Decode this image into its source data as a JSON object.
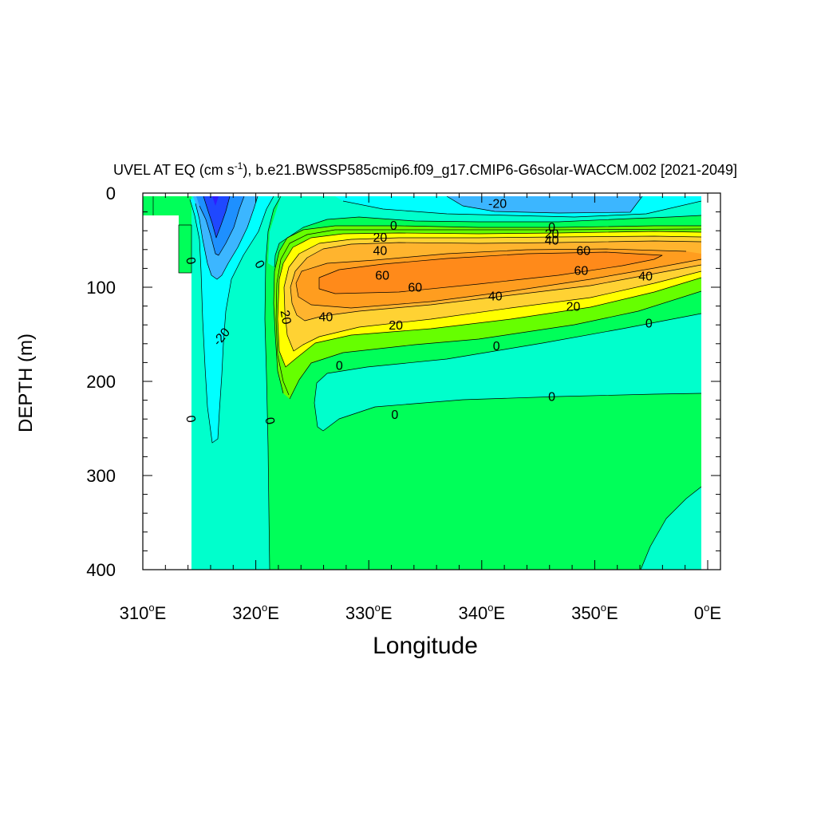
{
  "chart_data": {
    "type": "contour",
    "title": "UVEL AT EQ (cm s-1), b.e21.BWSSP585cmip6.f09_g17.CMIP6-G6solar-WACCM.002 [2021-2049]",
    "title_parts": {
      "pre": "UVEL AT EQ (cm s",
      "sup": "-1",
      "post": "), b.e21.BWSSP585cmip6.f09_g17.CMIP6-G6solar-WACCM.002 [2021-2049]"
    },
    "xlabel": "Longitude",
    "ylabel": "DEPTH (m)",
    "xlim": [
      310,
      360
    ],
    "ylim": [
      400,
      0
    ],
    "xticks": [
      {
        "value": 310,
        "num": "310",
        "deg": "o",
        "unit": "E"
      },
      {
        "value": 320,
        "num": "320",
        "deg": "o",
        "unit": "E"
      },
      {
        "value": 330,
        "num": "330",
        "deg": "o",
        "unit": "E"
      },
      {
        "value": 340,
        "num": "340",
        "deg": "o",
        "unit": "E"
      },
      {
        "value": 350,
        "num": "350",
        "deg": "o",
        "unit": "E"
      },
      {
        "value": 360,
        "num": "0",
        "deg": "o",
        "unit": "E"
      }
    ],
    "yticks": [
      {
        "value": 0,
        "label": "0"
      },
      {
        "value": 100,
        "label": "100"
      },
      {
        "value": 200,
        "label": "200"
      },
      {
        "value": 300,
        "label": "300"
      },
      {
        "value": 400,
        "label": "400"
      }
    ],
    "contour_levels": [
      -20,
      0,
      20,
      40,
      60
    ],
    "fill_colors": {
      "below_m40": "#1f48ff",
      "m40_m30": "#1e90ff",
      "m30_m20": "#3cb6ff",
      "m20_m10": "#00ffff",
      "m10_0": "#00ffcc",
      "0_10": "#00ff59",
      "10_20": "#66ff00",
      "20_30": "#ffff00",
      "30_40": "#ffd233",
      "40_50": "#ffb42e",
      "50_60": "#ff9d1f",
      "above_60": "#ff8a1a",
      "core": "#2e1eff",
      "land": "#ffffff"
    },
    "contour_labels": [
      {
        "text": "-20",
        "lon": 341.4,
        "depth": 12,
        "angle": 0
      },
      {
        "text": "0",
        "lon": 332.2,
        "depth": 35,
        "angle": 0
      },
      {
        "text": "0",
        "lon": 346.2,
        "depth": 37,
        "angle": 0
      },
      {
        "text": "20",
        "lon": 331.0,
        "depth": 48,
        "angle": 0
      },
      {
        "text": "20",
        "lon": 346.2,
        "depth": 44,
        "angle": 0
      },
      {
        "text": "40",
        "lon": 331.0,
        "depth": 62,
        "angle": 0
      },
      {
        "text": "40",
        "lon": 346.2,
        "depth": 51,
        "angle": 0
      },
      {
        "text": "60",
        "lon": 349.0,
        "depth": 62,
        "angle": 0
      },
      {
        "text": "60",
        "lon": 348.8,
        "depth": 83,
        "angle": 0
      },
      {
        "text": "40",
        "lon": 354.5,
        "depth": 89,
        "angle": 0
      },
      {
        "text": "60",
        "lon": 331.2,
        "depth": 88,
        "angle": 0
      },
      {
        "text": "60",
        "lon": 334.1,
        "depth": 101,
        "angle": 0
      },
      {
        "text": "40",
        "lon": 341.2,
        "depth": 110,
        "angle": 0
      },
      {
        "text": "20",
        "lon": 348.1,
        "depth": 121,
        "angle": 0
      },
      {
        "text": "0",
        "lon": 354.8,
        "depth": 139,
        "angle": 0
      },
      {
        "text": "20",
        "lon": 322.6,
        "depth": 132,
        "angle": 80
      },
      {
        "text": "40",
        "lon": 326.2,
        "depth": 132,
        "angle": 0
      },
      {
        "text": "20",
        "lon": 332.4,
        "depth": 141,
        "angle": 0
      },
      {
        "text": "0",
        "lon": 341.3,
        "depth": 163,
        "angle": 0
      },
      {
        "text": "0",
        "lon": 327.4,
        "depth": 184,
        "angle": 0
      },
      {
        "text": "0",
        "lon": 346.2,
        "depth": 217,
        "angle": 0
      },
      {
        "text": "0",
        "lon": 332.3,
        "depth": 236,
        "angle": 0
      },
      {
        "text": "0",
        "lon": 314.2,
        "depth": 72,
        "angle": 80
      },
      {
        "text": "0",
        "lon": 320.3,
        "depth": 76,
        "angle": 60
      },
      {
        "text": "-20",
        "lon": 317.0,
        "depth": 153,
        "angle": -50
      },
      {
        "text": "0",
        "lon": 314.2,
        "depth": 240,
        "angle": 80
      },
      {
        "text": "0",
        "lon": 321.2,
        "depth": 242,
        "angle": 80
      }
    ]
  }
}
